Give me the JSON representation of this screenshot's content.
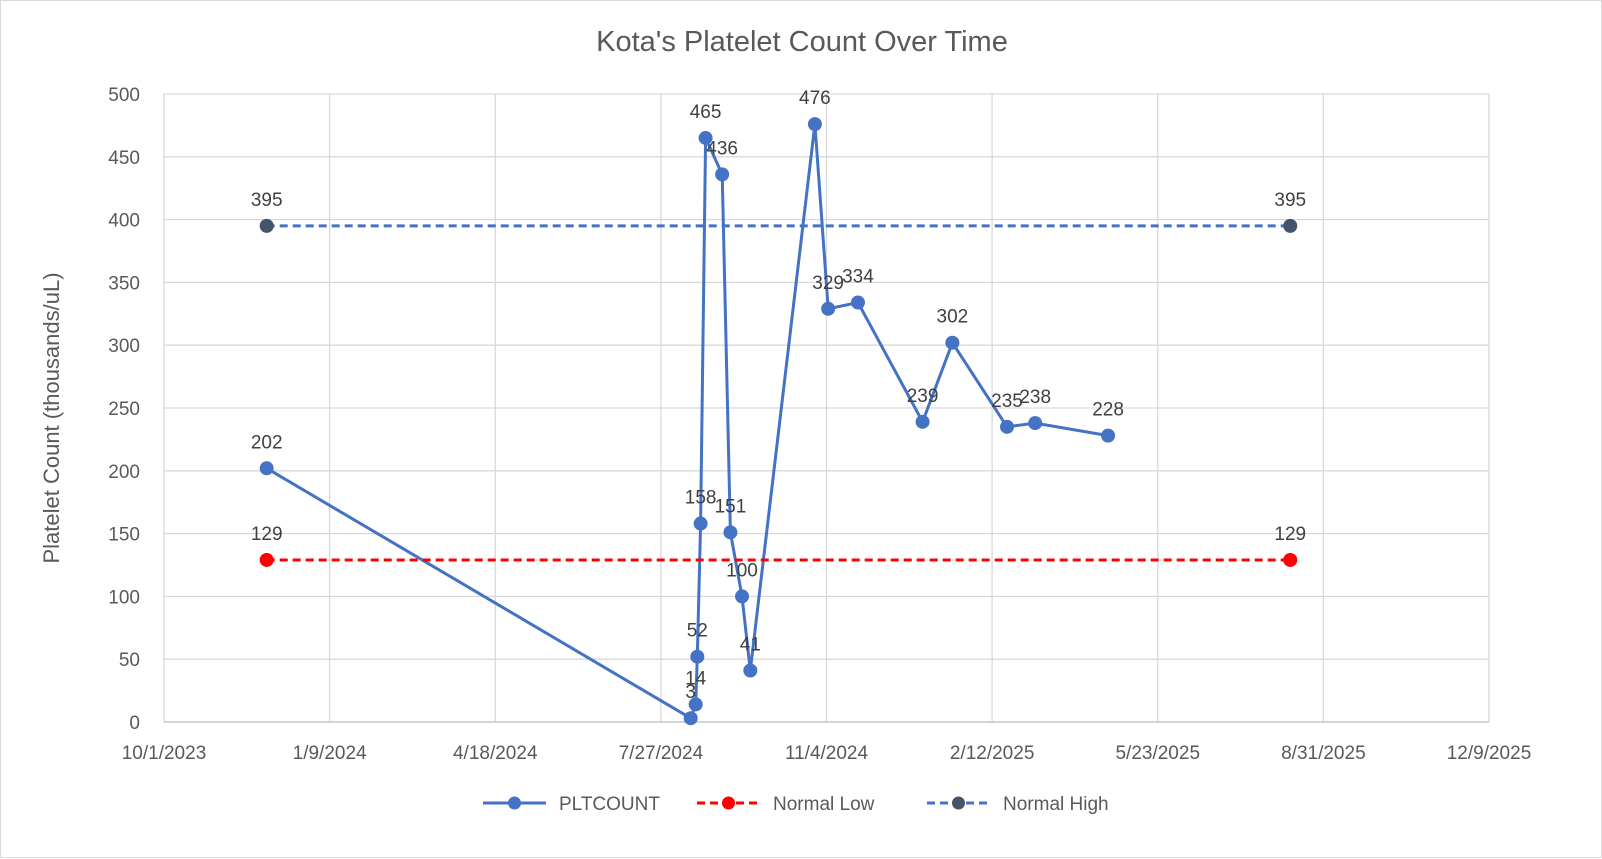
{
  "chart_data": {
    "type": "line",
    "title": "Kota's Platelet Count Over Time",
    "xlabel": "",
    "ylabel": "Platelet Count (thousands/uL)",
    "x_ticks": [
      "10/1/2023",
      "1/9/2024",
      "4/18/2024",
      "7/27/2024",
      "11/4/2024",
      "2/12/2025",
      "5/23/2025",
      "8/31/2025",
      "12/9/2025"
    ],
    "xlim": [
      "2023-10-01",
      "2025-12-09"
    ],
    "ylim": [
      0,
      500
    ],
    "y_ticks": [
      0,
      50,
      100,
      150,
      200,
      250,
      300,
      350,
      400,
      450,
      500
    ],
    "grid": true,
    "legend_position": "bottom",
    "series": [
      {
        "name": "PLTCOUNT",
        "color": "#4472c4",
        "line_style": "solid",
        "marker_color": "#4472c4",
        "points": [
          {
            "x": "2023-12-02",
            "y": 202
          },
          {
            "x": "2024-08-14",
            "y": 3
          },
          {
            "x": "2024-08-17",
            "y": 14
          },
          {
            "x": "2024-08-18",
            "y": 52
          },
          {
            "x": "2024-08-20",
            "y": 158
          },
          {
            "x": "2024-08-23",
            "y": 465
          },
          {
            "x": "2024-09-02",
            "y": 436
          },
          {
            "x": "2024-09-07",
            "y": 151
          },
          {
            "x": "2024-09-14",
            "y": 100
          },
          {
            "x": "2024-09-19",
            "y": 41
          },
          {
            "x": "2024-10-28",
            "y": 476
          },
          {
            "x": "2024-11-05",
            "y": 329
          },
          {
            "x": "2024-11-23",
            "y": 334
          },
          {
            "x": "2025-01-01",
            "y": 239
          },
          {
            "x": "2025-01-19",
            "y": 302
          },
          {
            "x": "2025-02-21",
            "y": 235
          },
          {
            "x": "2025-03-10",
            "y": 238
          },
          {
            "x": "2025-04-23",
            "y": 228
          }
        ]
      },
      {
        "name": "Normal Low",
        "color": "#ff0000",
        "line_style": "dashed",
        "marker_color": "#ff0000",
        "points": [
          {
            "x": "2023-12-02",
            "y": 129
          },
          {
            "x": "2025-08-11",
            "y": 129
          }
        ]
      },
      {
        "name": "Normal High",
        "color": "#4472c4",
        "line_style": "dashed",
        "marker_color": "#44546a",
        "points": [
          {
            "x": "2023-12-02",
            "y": 395
          },
          {
            "x": "2025-08-11",
            "y": 395
          }
        ]
      }
    ]
  }
}
